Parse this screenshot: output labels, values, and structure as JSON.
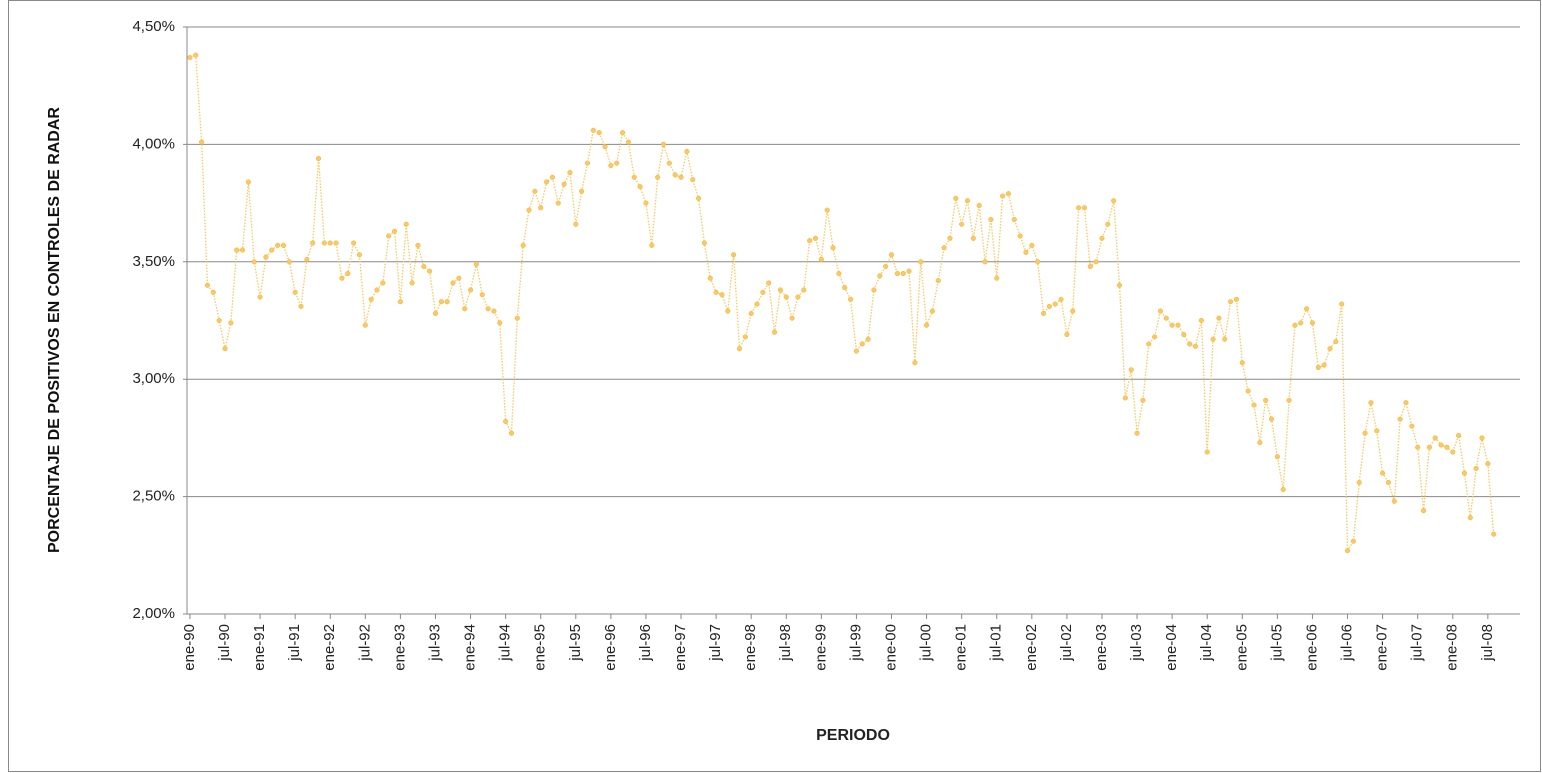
{
  "chart_data": {
    "type": "line",
    "y_label": "PORCENTAJE DE POSITIVOS EN CONTROLES DE RADAR",
    "x_label": "PERIODO",
    "categories": [
      "ene-90",
      null,
      null,
      null,
      null,
      null,
      "jul-90",
      null,
      null,
      null,
      null,
      null,
      "ene-91",
      null,
      null,
      null,
      null,
      null,
      "jul-91",
      null,
      null,
      null,
      null,
      null,
      "ene-92",
      null,
      null,
      null,
      null,
      null,
      "jul-92",
      null,
      null,
      null,
      null,
      null,
      "ene-93",
      null,
      null,
      null,
      null,
      null,
      "jul-93",
      null,
      null,
      null,
      null,
      null,
      "ene-94",
      null,
      null,
      null,
      null,
      null,
      "jul-94",
      null,
      null,
      null,
      null,
      null,
      "ene-95",
      null,
      null,
      null,
      null,
      null,
      "jul-95",
      null,
      null,
      null,
      null,
      null,
      "ene-96",
      null,
      null,
      null,
      null,
      null,
      "jul-96",
      null,
      null,
      null,
      null,
      null,
      "ene-97",
      null,
      null,
      null,
      null,
      null,
      "jul-97",
      null,
      null,
      null,
      null,
      null,
      "ene-98",
      null,
      null,
      null,
      null,
      null,
      "jul-98",
      null,
      null,
      null,
      null,
      null,
      "ene-99",
      null,
      null,
      null,
      null,
      null,
      "jul-99",
      null,
      null,
      null,
      null,
      null,
      "ene-00",
      null,
      null,
      null,
      null,
      null,
      "jul-00",
      null,
      null,
      null,
      null,
      null,
      "ene-01",
      null,
      null,
      null,
      null,
      null,
      "jul-01",
      null,
      null,
      null,
      null,
      null,
      "ene-02",
      null,
      null,
      null,
      null,
      null,
      "jul-02",
      null,
      null,
      null,
      null,
      null,
      "ene-03",
      null,
      null,
      null,
      null,
      null,
      "jul-03",
      null,
      null,
      null,
      null,
      null,
      "ene-04",
      null,
      null,
      null,
      null,
      null,
      "jul-04",
      null,
      null,
      null,
      null,
      null,
      "ene-05",
      null,
      null,
      null,
      null,
      null,
      "jul-05",
      null,
      null,
      null,
      null,
      null,
      "ene-06",
      null,
      null,
      null,
      null,
      null,
      "jul-06",
      null,
      null,
      null,
      null,
      null,
      "ene-07",
      null,
      null,
      null,
      null,
      null,
      "jul-07",
      null,
      null,
      null,
      null,
      null,
      "ene-08",
      null,
      null,
      null,
      null,
      null,
      "jul-08",
      null,
      null,
      null,
      null,
      null
    ],
    "series": [
      {
        "color": "#fbc862",
        "values": [
          4.37,
          4.38,
          4.01,
          3.4,
          3.37,
          3.25,
          3.13,
          3.24,
          3.55,
          3.55,
          3.84,
          3.5,
          3.35,
          3.52,
          3.55,
          3.57,
          3.57,
          3.5,
          3.37,
          3.31,
          3.51,
          3.58,
          3.94,
          3.58,
          3.58,
          3.58,
          3.43,
          3.45,
          3.58,
          3.53,
          3.23,
          3.34,
          3.38,
          3.41,
          3.61,
          3.63,
          3.33,
          3.66,
          3.41,
          3.57,
          3.48,
          3.46,
          3.28,
          3.33,
          3.33,
          3.41,
          3.43,
          3.3,
          3.38,
          3.49,
          3.36,
          3.3,
          3.29,
          3.24,
          2.82,
          2.77,
          3.26,
          3.57,
          3.72,
          3.8,
          3.73,
          3.84,
          3.86,
          3.75,
          3.83,
          3.88,
          3.66,
          3.8,
          3.92,
          4.06,
          4.05,
          3.99,
          3.91,
          3.92,
          4.05,
          4.01,
          3.86,
          3.82,
          3.75,
          3.57,
          3.86,
          4.0,
          3.92,
          3.87,
          3.86,
          3.97,
          3.85,
          3.77,
          3.58,
          3.43,
          3.37,
          3.36,
          3.29,
          3.53,
          3.13,
          3.18,
          3.28,
          3.32,
          3.37,
          3.41,
          3.2,
          3.38,
          3.35,
          3.26,
          3.35,
          3.38,
          3.59,
          3.6,
          3.51,
          3.72,
          3.56,
          3.45,
          3.39,
          3.34,
          3.12,
          3.15,
          3.17,
          3.38,
          3.44,
          3.48,
          3.53,
          3.45,
          3.45,
          3.46,
          3.07,
          3.5,
          3.23,
          3.29,
          3.42,
          3.56,
          3.6,
          3.77,
          3.66,
          3.76,
          3.6,
          3.74,
          3.5,
          3.68,
          3.43,
          3.78,
          3.79,
          3.68,
          3.61,
          3.54,
          3.57,
          3.5,
          3.28,
          3.31,
          3.32,
          3.34,
          3.19,
          3.29,
          3.73,
          3.73,
          3.48,
          3.5,
          3.6,
          3.66,
          3.76,
          3.4,
          2.92,
          3.04,
          2.77,
          2.91,
          3.15,
          3.18,
          3.29,
          3.26,
          3.23,
          3.23,
          3.19,
          3.15,
          3.14,
          3.25,
          2.69,
          3.17,
          3.26,
          3.17,
          3.33,
          3.34,
          3.07,
          2.95,
          2.89,
          2.73,
          2.91,
          2.83,
          2.67,
          2.53,
          2.91,
          3.23,
          3.24,
          3.3,
          3.24,
          3.05,
          3.06,
          3.13,
          3.16,
          3.32,
          2.27,
          2.31,
          2.56,
          2.77,
          2.9,
          2.78,
          2.6,
          2.56,
          2.48,
          2.83,
          2.9,
          2.8,
          2.71,
          2.44,
          2.71,
          2.75,
          2.72,
          2.71,
          2.69,
          2.76,
          2.6,
          2.41,
          2.62,
          2.75,
          2.64,
          2.34,
          null,
          null,
          null,
          null
        ]
      }
    ],
    "ylim": [
      2,
      4.5
    ],
    "yticks": [
      {
        "value": 2,
        "label": "2,00%"
      },
      {
        "value": 2.5,
        "label": "2,50%"
      },
      {
        "value": 3,
        "label": "3,00%"
      },
      {
        "value": 3.5,
        "label": "3,50%"
      },
      {
        "value": 4,
        "label": "4,00%"
      },
      {
        "value": 4.5,
        "label": "4,50%"
      }
    ],
    "grid": true
  }
}
